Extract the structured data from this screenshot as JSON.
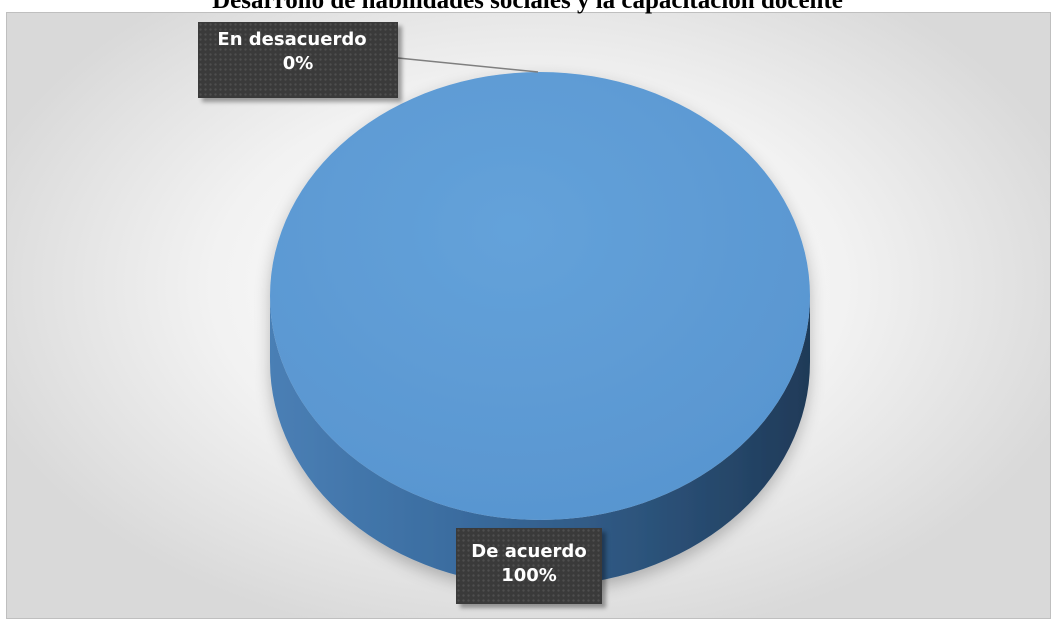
{
  "chart_data": {
    "type": "pie",
    "title": "Desarrollo de habilidades sociales y la capacitación docente",
    "categories": [
      "En desacuerdo",
      "De acuerdo"
    ],
    "values": [
      0,
      100
    ],
    "data_labels": [
      {
        "category": "En desacuerdo",
        "text": "0%"
      },
      {
        "category": "De acuerdo",
        "text": "100%"
      }
    ],
    "colors": {
      "De acuerdo": "#5b9bd5",
      "De acuerdo_side": "#2e5f8f",
      "En desacuerdo": "#a5a5a5",
      "label_background": "#3a3a3a",
      "leader_line": "#7f7f7f"
    },
    "style": "3d-pie",
    "legend": "none"
  }
}
